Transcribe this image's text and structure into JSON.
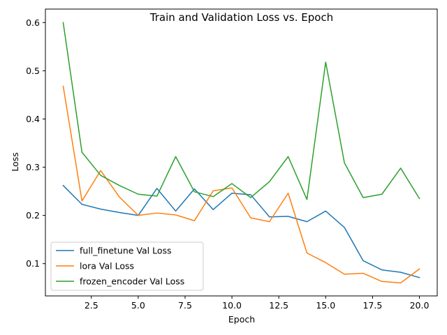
{
  "chart_data": {
    "type": "line",
    "title": "Train and Validation Loss vs. Epoch",
    "xlabel": "Epoch",
    "ylabel": "Loss",
    "xlim": [
      0.05,
      20.95
    ],
    "ylim": [
      0.033,
      0.628
    ],
    "xticks": [
      2.5,
      5.0,
      7.5,
      10.0,
      12.5,
      15.0,
      17.5,
      20.0
    ],
    "xtick_labels": [
      "2.5",
      "5.0",
      "7.5",
      "10.0",
      "12.5",
      "15.0",
      "17.5",
      "20.0"
    ],
    "yticks": [
      0.1,
      0.2,
      0.3,
      0.4,
      0.5,
      0.6
    ],
    "ytick_labels": [
      "0.1",
      "0.2",
      "0.3",
      "0.4",
      "0.5",
      "0.6"
    ],
    "grid": false,
    "legend_position": "lower-left",
    "x": [
      1,
      2,
      3,
      4,
      5,
      6,
      7,
      8,
      9,
      10,
      11,
      12,
      13,
      14,
      15,
      16,
      17,
      18,
      19,
      20
    ],
    "series": [
      {
        "name": "full_finetune Val Loss",
        "color": "#1f77b4",
        "values": [
          0.262,
          0.223,
          0.213,
          0.206,
          0.2,
          0.256,
          0.209,
          0.255,
          0.212,
          0.246,
          0.243,
          0.197,
          0.198,
          0.187,
          0.209,
          0.175,
          0.106,
          0.087,
          0.082,
          0.071
        ]
      },
      {
        "name": "lora Val Loss",
        "color": "#ff7f0e",
        "values": [
          0.468,
          0.23,
          0.293,
          0.238,
          0.2,
          0.205,
          0.201,
          0.189,
          0.251,
          0.257,
          0.195,
          0.187,
          0.246,
          0.122,
          0.102,
          0.078,
          0.08,
          0.063,
          0.06,
          0.089
        ]
      },
      {
        "name": "frozen_encoder Val Loss",
        "color": "#2ca02c",
        "values": [
          0.6,
          0.331,
          0.283,
          0.262,
          0.244,
          0.24,
          0.322,
          0.249,
          0.239,
          0.266,
          0.237,
          0.27,
          0.322,
          0.233,
          0.518,
          0.309,
          0.237,
          0.244,
          0.298,
          0.235
        ]
      }
    ]
  }
}
